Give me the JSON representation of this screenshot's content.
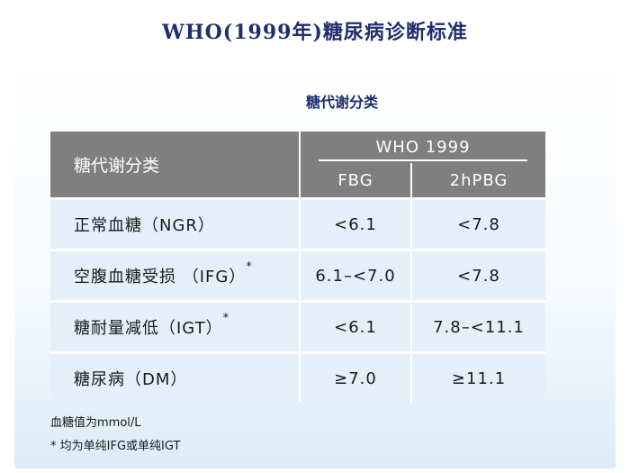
{
  "title": "WHO(1999年)糖尿病诊断标准",
  "subtitle": "糖代谢分类",
  "table": {
    "header": {
      "category": "糖代谢分类",
      "group": "WHO 1999",
      "col_fbg": "FBG",
      "col_2hpbg": "2hPBG"
    },
    "rows": [
      {
        "category": "正常血糖（NGR）",
        "star": "",
        "fbg": "<6.1",
        "pbg": "<7.8"
      },
      {
        "category": "空腹血糖受损 （IFG）",
        "star": "*",
        "fbg": "6.1–<7.0",
        "pbg": "<7.8"
      },
      {
        "category": "糖耐量减低（IGT）",
        "star": "*",
        "fbg": "<6.1",
        "pbg": "7.8–<11.1"
      },
      {
        "category": "糖尿病（DM）",
        "star": "",
        "fbg": "≥7.0",
        "pbg": "≥11.1"
      }
    ]
  },
  "notes": {
    "unit": "血糖值为mmol/L",
    "footnote": "* 均为单纯IFG或单纯IGT"
  }
}
